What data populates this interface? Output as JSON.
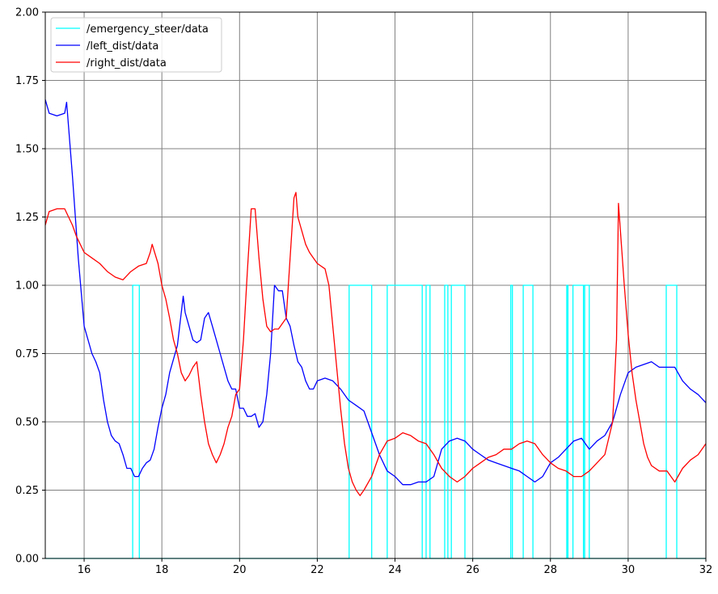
{
  "chart_data": {
    "type": "line",
    "title": "",
    "xlabel": "",
    "ylabel": "",
    "xlim": [
      15,
      32
    ],
    "ylim": [
      0,
      2.0
    ],
    "x_ticks": [
      16,
      18,
      20,
      22,
      24,
      26,
      28,
      30,
      32
    ],
    "y_ticks": [
      0.0,
      0.25,
      0.5,
      0.75,
      1.0,
      1.25,
      1.5,
      1.75,
      2.0
    ],
    "x_tick_labels": [
      "16",
      "18",
      "20",
      "22",
      "24",
      "26",
      "28",
      "30",
      "32"
    ],
    "y_tick_labels": [
      "0.00",
      "0.25",
      "0.50",
      "0.75",
      "1.00",
      "1.25",
      "1.50",
      "1.75",
      "2.00"
    ],
    "grid": true,
    "legend_position": "top-left",
    "series": [
      {
        "name": "/emergency_steer/data",
        "color": "#00ffff",
        "step": true,
        "x": [
          15.0,
          17.25,
          17.42,
          22.82,
          23.4,
          23.8,
          23.84,
          24.7,
          24.75,
          24.8,
          24.9,
          25.28,
          25.36,
          25.45,
          25.8,
          26.98,
          27.02,
          27.3,
          27.55,
          28.42,
          28.45,
          28.58,
          28.85,
          28.88,
          29.0,
          29.02,
          30.98,
          31.25,
          32.0
        ],
        "y": [
          0,
          1,
          0,
          1,
          0,
          1,
          1,
          0,
          0,
          1,
          0,
          1,
          0,
          1,
          0,
          1,
          0,
          1,
          0,
          1,
          0,
          1,
          0,
          1,
          0,
          0,
          1,
          0,
          0
        ]
      },
      {
        "name": "/left_dist/data",
        "color": "#0000ff",
        "x": [
          15.0,
          15.1,
          15.3,
          15.5,
          15.55,
          15.6,
          15.7,
          15.8,
          15.85,
          16.0,
          16.1,
          16.2,
          16.3,
          16.4,
          16.5,
          16.6,
          16.7,
          16.8,
          16.9,
          17.0,
          17.1,
          17.2,
          17.3,
          17.4,
          17.5,
          17.6,
          17.7,
          17.8,
          17.9,
          18.0,
          18.1,
          18.2,
          18.3,
          18.4,
          18.5,
          18.55,
          18.6,
          18.7,
          18.8,
          18.9,
          19.0,
          19.1,
          19.2,
          19.3,
          19.4,
          19.5,
          19.6,
          19.7,
          19.8,
          19.9,
          20.0,
          20.1,
          20.2,
          20.3,
          20.4,
          20.5,
          20.6,
          20.7,
          20.8,
          20.9,
          21.0,
          21.1,
          21.2,
          21.3,
          21.4,
          21.5,
          21.6,
          21.7,
          21.8,
          21.9,
          22.0,
          22.2,
          22.4,
          22.6,
          22.8,
          23.0,
          23.2,
          23.4,
          23.6,
          23.8,
          24.0,
          24.2,
          24.4,
          24.6,
          24.8,
          25.0,
          25.2,
          25.4,
          25.6,
          25.8,
          26.0,
          26.2,
          26.4,
          26.6,
          26.8,
          27.0,
          27.2,
          27.4,
          27.6,
          27.8,
          28.0,
          28.2,
          28.4,
          28.6,
          28.8,
          29.0,
          29.2,
          29.4,
          29.6,
          29.8,
          30.0,
          30.2,
          30.4,
          30.6,
          30.8,
          31.0,
          31.2,
          31.4,
          31.6,
          31.8,
          32.0
        ],
        "y": [
          1.68,
          1.63,
          1.62,
          1.63,
          1.67,
          1.58,
          1.4,
          1.2,
          1.1,
          0.85,
          0.8,
          0.75,
          0.72,
          0.68,
          0.58,
          0.5,
          0.45,
          0.43,
          0.42,
          0.38,
          0.33,
          0.33,
          0.3,
          0.3,
          0.33,
          0.35,
          0.36,
          0.4,
          0.48,
          0.55,
          0.6,
          0.68,
          0.73,
          0.78,
          0.9,
          0.96,
          0.9,
          0.85,
          0.8,
          0.79,
          0.8,
          0.88,
          0.9,
          0.85,
          0.8,
          0.75,
          0.7,
          0.65,
          0.62,
          0.62,
          0.55,
          0.55,
          0.52,
          0.52,
          0.53,
          0.48,
          0.5,
          0.6,
          0.75,
          1.0,
          0.98,
          0.98,
          0.88,
          0.85,
          0.78,
          0.72,
          0.7,
          0.65,
          0.62,
          0.62,
          0.65,
          0.66,
          0.65,
          0.62,
          0.58,
          0.56,
          0.54,
          0.46,
          0.38,
          0.32,
          0.3,
          0.27,
          0.27,
          0.28,
          0.28,
          0.3,
          0.4,
          0.43,
          0.44,
          0.43,
          0.4,
          0.38,
          0.36,
          0.35,
          0.34,
          0.33,
          0.32,
          0.3,
          0.28,
          0.3,
          0.35,
          0.37,
          0.4,
          0.43,
          0.44,
          0.4,
          0.43,
          0.45,
          0.5,
          0.6,
          0.68,
          0.7,
          0.71,
          0.72,
          0.7,
          0.7,
          0.7,
          0.65,
          0.62,
          0.6,
          0.57
        ]
      },
      {
        "name": "/right_dist/data",
        "color": "#ff0000",
        "x": [
          15.0,
          15.1,
          15.3,
          15.5,
          15.6,
          15.7,
          15.8,
          16.0,
          16.2,
          16.4,
          16.6,
          16.8,
          17.0,
          17.2,
          17.4,
          17.6,
          17.7,
          17.75,
          17.9,
          18.0,
          18.1,
          18.2,
          18.3,
          18.4,
          18.5,
          18.6,
          18.7,
          18.8,
          18.9,
          19.0,
          19.1,
          19.2,
          19.3,
          19.4,
          19.5,
          19.6,
          19.7,
          19.8,
          19.9,
          20.0,
          20.1,
          20.2,
          20.3,
          20.4,
          20.5,
          20.6,
          20.7,
          20.8,
          20.9,
          21.0,
          21.2,
          21.3,
          21.4,
          21.45,
          21.5,
          21.6,
          21.7,
          21.8,
          21.9,
          22.0,
          22.2,
          22.3,
          22.4,
          22.5,
          22.6,
          22.7,
          22.8,
          22.9,
          23.0,
          23.1,
          23.2,
          23.4,
          23.6,
          23.8,
          24.0,
          24.2,
          24.4,
          24.6,
          24.8,
          25.0,
          25.2,
          25.4,
          25.6,
          25.8,
          26.0,
          26.2,
          26.4,
          26.6,
          26.8,
          27.0,
          27.2,
          27.4,
          27.6,
          27.8,
          28.0,
          28.2,
          28.4,
          28.6,
          28.8,
          29.0,
          29.2,
          29.4,
          29.6,
          29.7,
          29.75,
          29.8,
          29.9,
          30.0,
          30.1,
          30.2,
          30.3,
          30.4,
          30.5,
          30.6,
          30.8,
          31.0,
          31.2,
          31.4,
          31.6,
          31.8,
          32.0
        ],
        "y": [
          1.22,
          1.27,
          1.28,
          1.28,
          1.25,
          1.22,
          1.18,
          1.12,
          1.1,
          1.08,
          1.05,
          1.03,
          1.02,
          1.05,
          1.07,
          1.08,
          1.12,
          1.15,
          1.08,
          1.0,
          0.95,
          0.88,
          0.8,
          0.75,
          0.68,
          0.65,
          0.67,
          0.7,
          0.72,
          0.6,
          0.5,
          0.42,
          0.38,
          0.35,
          0.38,
          0.42,
          0.48,
          0.52,
          0.6,
          0.62,
          0.8,
          1.05,
          1.28,
          1.28,
          1.1,
          0.95,
          0.85,
          0.83,
          0.84,
          0.84,
          0.88,
          1.1,
          1.32,
          1.34,
          1.25,
          1.2,
          1.15,
          1.12,
          1.1,
          1.08,
          1.06,
          1.0,
          0.85,
          0.7,
          0.55,
          0.42,
          0.33,
          0.28,
          0.25,
          0.23,
          0.25,
          0.3,
          0.38,
          0.43,
          0.44,
          0.46,
          0.45,
          0.43,
          0.42,
          0.38,
          0.33,
          0.3,
          0.28,
          0.3,
          0.33,
          0.35,
          0.37,
          0.38,
          0.4,
          0.4,
          0.42,
          0.43,
          0.42,
          0.38,
          0.35,
          0.33,
          0.32,
          0.3,
          0.3,
          0.32,
          0.35,
          0.38,
          0.5,
          0.8,
          1.3,
          1.2,
          1.0,
          0.82,
          0.68,
          0.58,
          0.5,
          0.42,
          0.37,
          0.34,
          0.32,
          0.32,
          0.28,
          0.33,
          0.36,
          0.38,
          0.42
        ]
      }
    ]
  }
}
